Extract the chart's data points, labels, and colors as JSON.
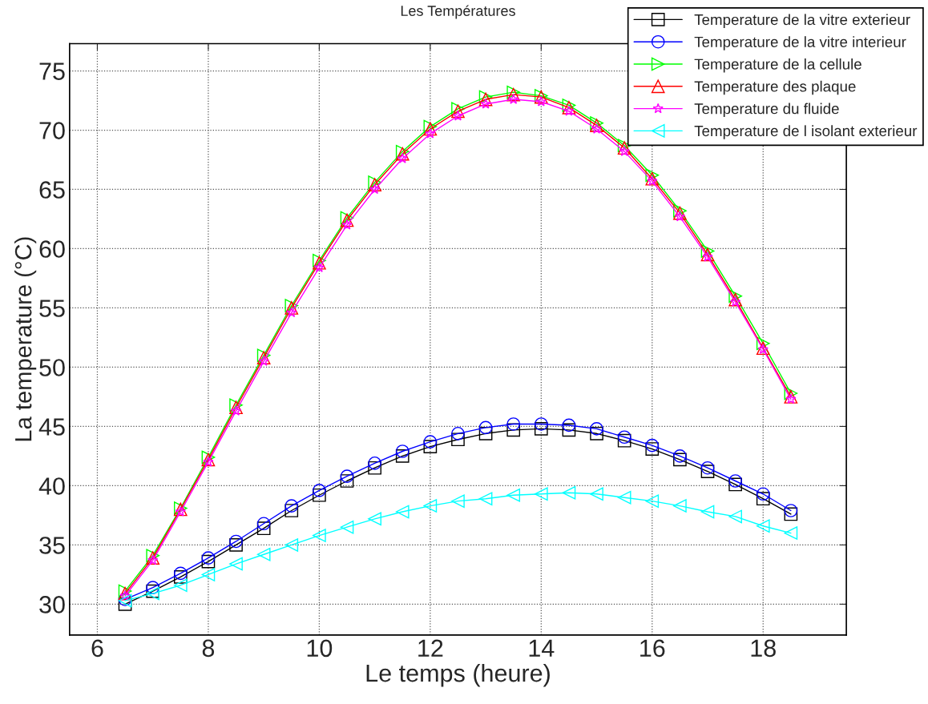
{
  "chart_data": {
    "type": "line",
    "title": "Les Températures",
    "xlabel": "Le temps (heure)",
    "ylabel": "La temperature (°C)",
    "x": [
      6.5,
      7,
      7.5,
      8,
      8.5,
      9,
      9.5,
      10,
      10.5,
      11,
      11.5,
      12,
      12.5,
      13,
      13.5,
      14,
      14.5,
      15,
      15.5,
      16,
      16.5,
      17,
      17.5,
      18,
      18.5
    ],
    "series": [
      {
        "name": "Temperature de la vitre exterieur",
        "color": "#000000",
        "marker": "square",
        "values": [
          30.0,
          31.1,
          32.3,
          33.6,
          35.0,
          36.4,
          37.9,
          39.2,
          40.4,
          41.5,
          42.5,
          43.3,
          43.9,
          44.4,
          44.7,
          44.8,
          44.7,
          44.4,
          43.8,
          43.1,
          42.2,
          41.2,
          40.1,
          38.9,
          37.6
        ]
      },
      {
        "name": "Temperature de la vitre interieur",
        "color": "#0000ff",
        "marker": "circle",
        "values": [
          30.4,
          31.4,
          32.6,
          33.9,
          35.3,
          36.8,
          38.3,
          39.6,
          40.8,
          41.9,
          42.9,
          43.7,
          44.4,
          44.9,
          45.2,
          45.2,
          45.1,
          44.8,
          44.1,
          43.4,
          42.5,
          41.5,
          40.4,
          39.3,
          37.9
        ]
      },
      {
        "name": "Temperature de la cellule",
        "color": "#00ff00",
        "marker": "triangle_right",
        "values": [
          31.1,
          34.1,
          38.1,
          42.4,
          46.8,
          51.0,
          55.2,
          59.0,
          62.6,
          65.6,
          68.2,
          70.3,
          71.8,
          72.8,
          73.2,
          72.9,
          72.1,
          70.6,
          68.7,
          66.2,
          63.2,
          59.8,
          56.0,
          52.0,
          47.8
        ]
      },
      {
        "name": "Temperature des plaque",
        "color": "#ff0000",
        "marker": "triangle",
        "values": [
          30.9,
          33.9,
          38.0,
          42.2,
          46.6,
          50.8,
          55.0,
          58.8,
          62.4,
          65.4,
          68.0,
          70.1,
          71.6,
          72.6,
          73.0,
          72.8,
          71.9,
          70.4,
          68.5,
          65.9,
          63.0,
          59.5,
          55.7,
          51.6,
          47.5
        ]
      },
      {
        "name": "Temperature du fluide",
        "color": "#ff00ff",
        "marker": "star",
        "values": [
          30.7,
          33.7,
          37.8,
          42.0,
          46.3,
          50.5,
          54.6,
          58.4,
          62.0,
          65.0,
          67.6,
          69.7,
          71.2,
          72.2,
          72.6,
          72.4,
          71.6,
          70.1,
          68.2,
          65.7,
          62.7,
          59.3,
          55.5,
          51.5,
          47.3
        ]
      },
      {
        "name": "Temperature de l isolant exterieur",
        "color": "#00ffff",
        "marker": "triangle_left",
        "values": [
          30.3,
          30.9,
          31.6,
          32.5,
          33.4,
          34.2,
          35.0,
          35.8,
          36.5,
          37.2,
          37.8,
          38.3,
          38.7,
          38.9,
          39.2,
          39.3,
          39.4,
          39.3,
          39.0,
          38.7,
          38.3,
          37.8,
          37.4,
          36.6,
          36.0
        ]
      }
    ],
    "xlim": [
      5.5,
      19.5
    ],
    "ylim": [
      27.4,
      77.3
    ],
    "xticks": [
      6,
      8,
      10,
      12,
      14,
      16,
      18
    ],
    "yticks": [
      30,
      35,
      40,
      45,
      50,
      55,
      60,
      65,
      70,
      75
    ],
    "grid": true,
    "legend": "top right",
    "line_style": "solid"
  }
}
